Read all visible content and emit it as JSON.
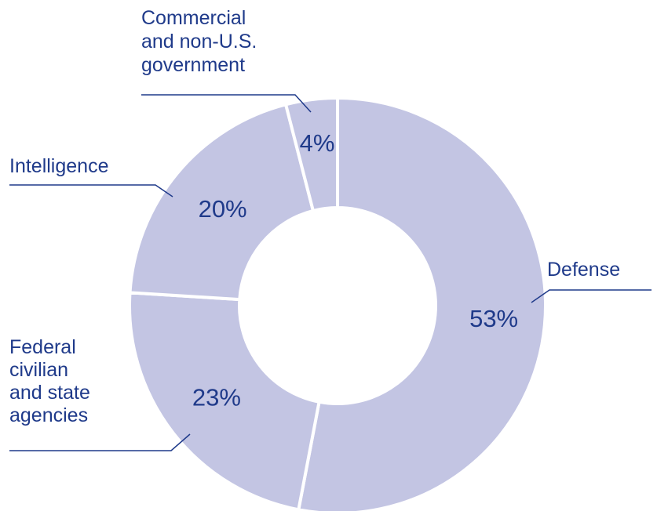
{
  "chart_data": {
    "type": "pie",
    "style": "donut",
    "slice_color": "#c3c5e3",
    "separator_color": "#ffffff",
    "text_color": "#1f3a8a",
    "slices": [
      {
        "label": "Defense",
        "value": 53,
        "value_label": "53%"
      },
      {
        "label": "Federal civilian and state agencies",
        "value": 23,
        "value_label": "23%"
      },
      {
        "label": "Intelligence",
        "value": 20,
        "value_label": "20%"
      },
      {
        "label": "Commercial and non-U.S. government",
        "value": 4,
        "value_label": "4%"
      }
    ],
    "label_lines": [
      [
        "Defense"
      ],
      [
        "Federal",
        "civilian",
        "and state",
        "agencies"
      ],
      [
        "Intelligence"
      ],
      [
        "Commercial",
        "and non-U.S.",
        "government"
      ]
    ]
  }
}
